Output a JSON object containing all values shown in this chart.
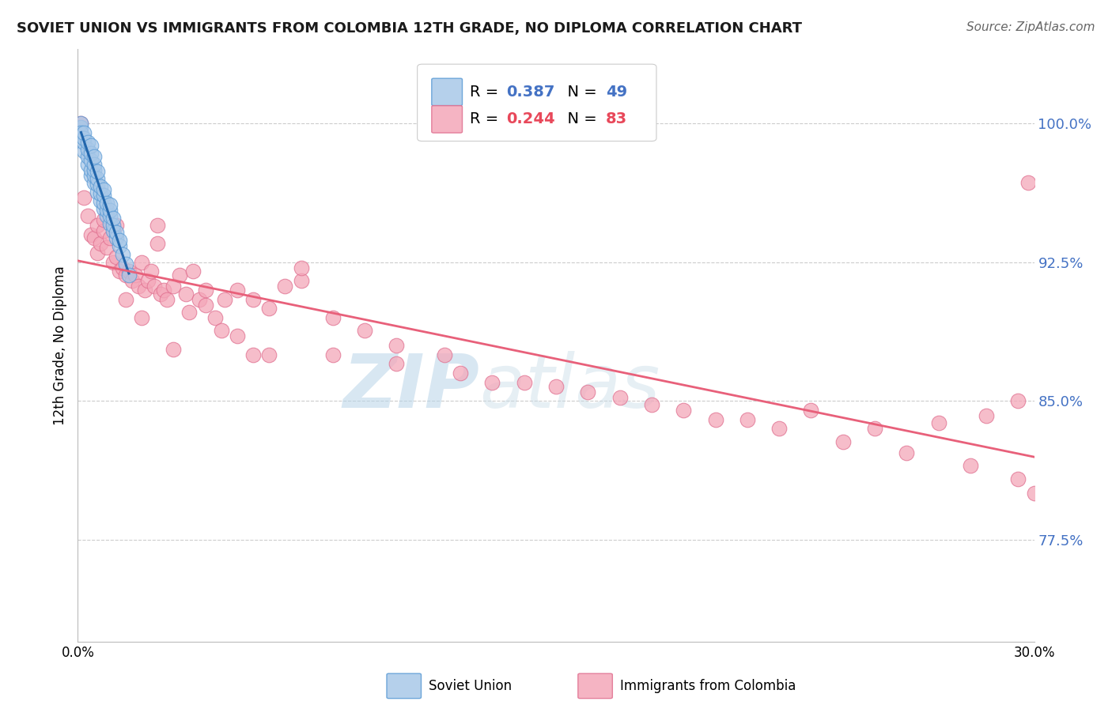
{
  "title": "SOVIET UNION VS IMMIGRANTS FROM COLOMBIA 12TH GRADE, NO DIPLOMA CORRELATION CHART",
  "source": "Source: ZipAtlas.com",
  "ylabel": "12th Grade, No Diploma",
  "xlim": [
    0.0,
    0.3
  ],
  "ylim": [
    0.72,
    1.04
  ],
  "ytick_positions": [
    0.775,
    0.85,
    0.925,
    1.0
  ],
  "ytick_labels": [
    "77.5%",
    "85.0%",
    "92.5%",
    "100.0%"
  ],
  "series1_name": "Soviet Union",
  "series2_name": "Immigrants from Colombia",
  "series1_color": "#a8c8e8",
  "series1_edge": "#5b9bd5",
  "series2_color": "#f4a7b9",
  "series2_edge": "#e07090",
  "trendline1_color": "#2166ac",
  "trendline2_color": "#e8607a",
  "watermark_zip": "ZIP",
  "watermark_atlas": "atlas",
  "background_color": "#ffffff",
  "grid_color": "#cccccc",
  "legend_R1": "0.387",
  "legend_N1": "49",
  "legend_R2": "0.244",
  "legend_N2": "83",
  "soviet_x": [
    0.001,
    0.001,
    0.001,
    0.002,
    0.002,
    0.002,
    0.002,
    0.003,
    0.003,
    0.003,
    0.003,
    0.004,
    0.004,
    0.004,
    0.004,
    0.004,
    0.005,
    0.005,
    0.005,
    0.005,
    0.005,
    0.006,
    0.006,
    0.006,
    0.006,
    0.007,
    0.007,
    0.007,
    0.008,
    0.008,
    0.008,
    0.008,
    0.009,
    0.009,
    0.009,
    0.01,
    0.01,
    0.01,
    0.01,
    0.011,
    0.011,
    0.011,
    0.012,
    0.012,
    0.013,
    0.013,
    0.014,
    0.015,
    0.016
  ],
  "soviet_y": [
    0.998,
    1.0,
    0.995,
    0.985,
    0.99,
    0.992,
    0.995,
    0.978,
    0.982,
    0.986,
    0.99,
    0.972,
    0.975,
    0.98,
    0.984,
    0.988,
    0.968,
    0.972,
    0.975,
    0.978,
    0.982,
    0.963,
    0.967,
    0.97,
    0.974,
    0.958,
    0.962,
    0.966,
    0.954,
    0.957,
    0.961,
    0.964,
    0.95,
    0.953,
    0.957,
    0.946,
    0.95,
    0.953,
    0.956,
    0.942,
    0.945,
    0.949,
    0.938,
    0.941,
    0.934,
    0.937,
    0.929,
    0.924,
    0.918
  ],
  "colombia_x": [
    0.001,
    0.002,
    0.003,
    0.004,
    0.005,
    0.006,
    0.006,
    0.007,
    0.008,
    0.009,
    0.01,
    0.011,
    0.012,
    0.013,
    0.014,
    0.015,
    0.016,
    0.017,
    0.018,
    0.019,
    0.02,
    0.021,
    0.022,
    0.023,
    0.024,
    0.025,
    0.026,
    0.027,
    0.028,
    0.03,
    0.032,
    0.034,
    0.036,
    0.038,
    0.04,
    0.043,
    0.046,
    0.05,
    0.055,
    0.06,
    0.065,
    0.07,
    0.08,
    0.09,
    0.1,
    0.115,
    0.13,
    0.15,
    0.17,
    0.19,
    0.21,
    0.23,
    0.25,
    0.27,
    0.285,
    0.295,
    0.298,
    0.02,
    0.025,
    0.035,
    0.045,
    0.055,
    0.07,
    0.04,
    0.03,
    0.015,
    0.012,
    0.008,
    0.05,
    0.06,
    0.08,
    0.1,
    0.12,
    0.14,
    0.16,
    0.18,
    0.2,
    0.22,
    0.24,
    0.26,
    0.28,
    0.295,
    0.3
  ],
  "colombia_y": [
    1.0,
    0.96,
    0.95,
    0.94,
    0.938,
    0.93,
    0.945,
    0.935,
    0.942,
    0.933,
    0.938,
    0.925,
    0.928,
    0.92,
    0.922,
    0.918,
    0.92,
    0.915,
    0.918,
    0.912,
    0.925,
    0.91,
    0.915,
    0.92,
    0.912,
    0.935,
    0.908,
    0.91,
    0.905,
    0.912,
    0.918,
    0.908,
    0.92,
    0.905,
    0.902,
    0.895,
    0.905,
    0.91,
    0.905,
    0.9,
    0.912,
    0.915,
    0.895,
    0.888,
    0.88,
    0.875,
    0.86,
    0.858,
    0.852,
    0.845,
    0.84,
    0.845,
    0.835,
    0.838,
    0.842,
    0.85,
    0.968,
    0.895,
    0.945,
    0.898,
    0.888,
    0.875,
    0.922,
    0.91,
    0.878,
    0.905,
    0.945,
    0.948,
    0.885,
    0.875,
    0.875,
    0.87,
    0.865,
    0.86,
    0.855,
    0.848,
    0.84,
    0.835,
    0.828,
    0.822,
    0.815,
    0.808,
    0.8
  ]
}
